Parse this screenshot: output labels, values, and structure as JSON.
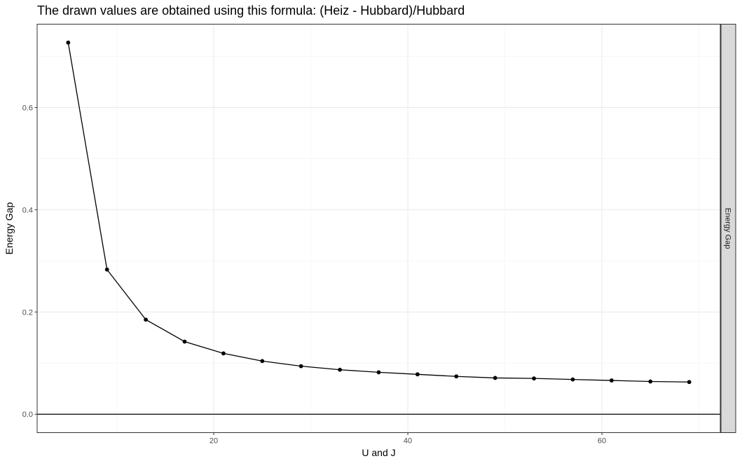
{
  "chart_data": {
    "type": "line",
    "title": "The drawn values are obtained using this formula: (Heiz - Hubbard)/Hubbard",
    "xlabel": "U and J",
    "ylabel": "Energy Gap",
    "facet_label": "Energy Gap",
    "xlim": [
      1.8,
      72.2
    ],
    "ylim": [
      -0.036,
      0.763
    ],
    "x_ticks": [
      20,
      40,
      60
    ],
    "x_tick_labels": [
      "20",
      "40",
      "60"
    ],
    "y_ticks": [
      0.0,
      0.2,
      0.4,
      0.6
    ],
    "y_tick_labels": [
      "0.0",
      "0.2",
      "0.4",
      "0.6"
    ],
    "hline": 0,
    "grid": true,
    "series": [
      {
        "x": [
          5,
          9,
          13,
          17,
          21,
          25,
          29,
          33,
          37,
          41,
          45,
          49,
          53,
          57,
          61,
          65,
          69
        ],
        "y": [
          0.727,
          0.283,
          0.185,
          0.142,
          0.119,
          0.104,
          0.094,
          0.087,
          0.082,
          0.078,
          0.074,
          0.071,
          0.07,
          0.068,
          0.066,
          0.064,
          0.063
        ],
        "color": "#000000"
      }
    ]
  }
}
